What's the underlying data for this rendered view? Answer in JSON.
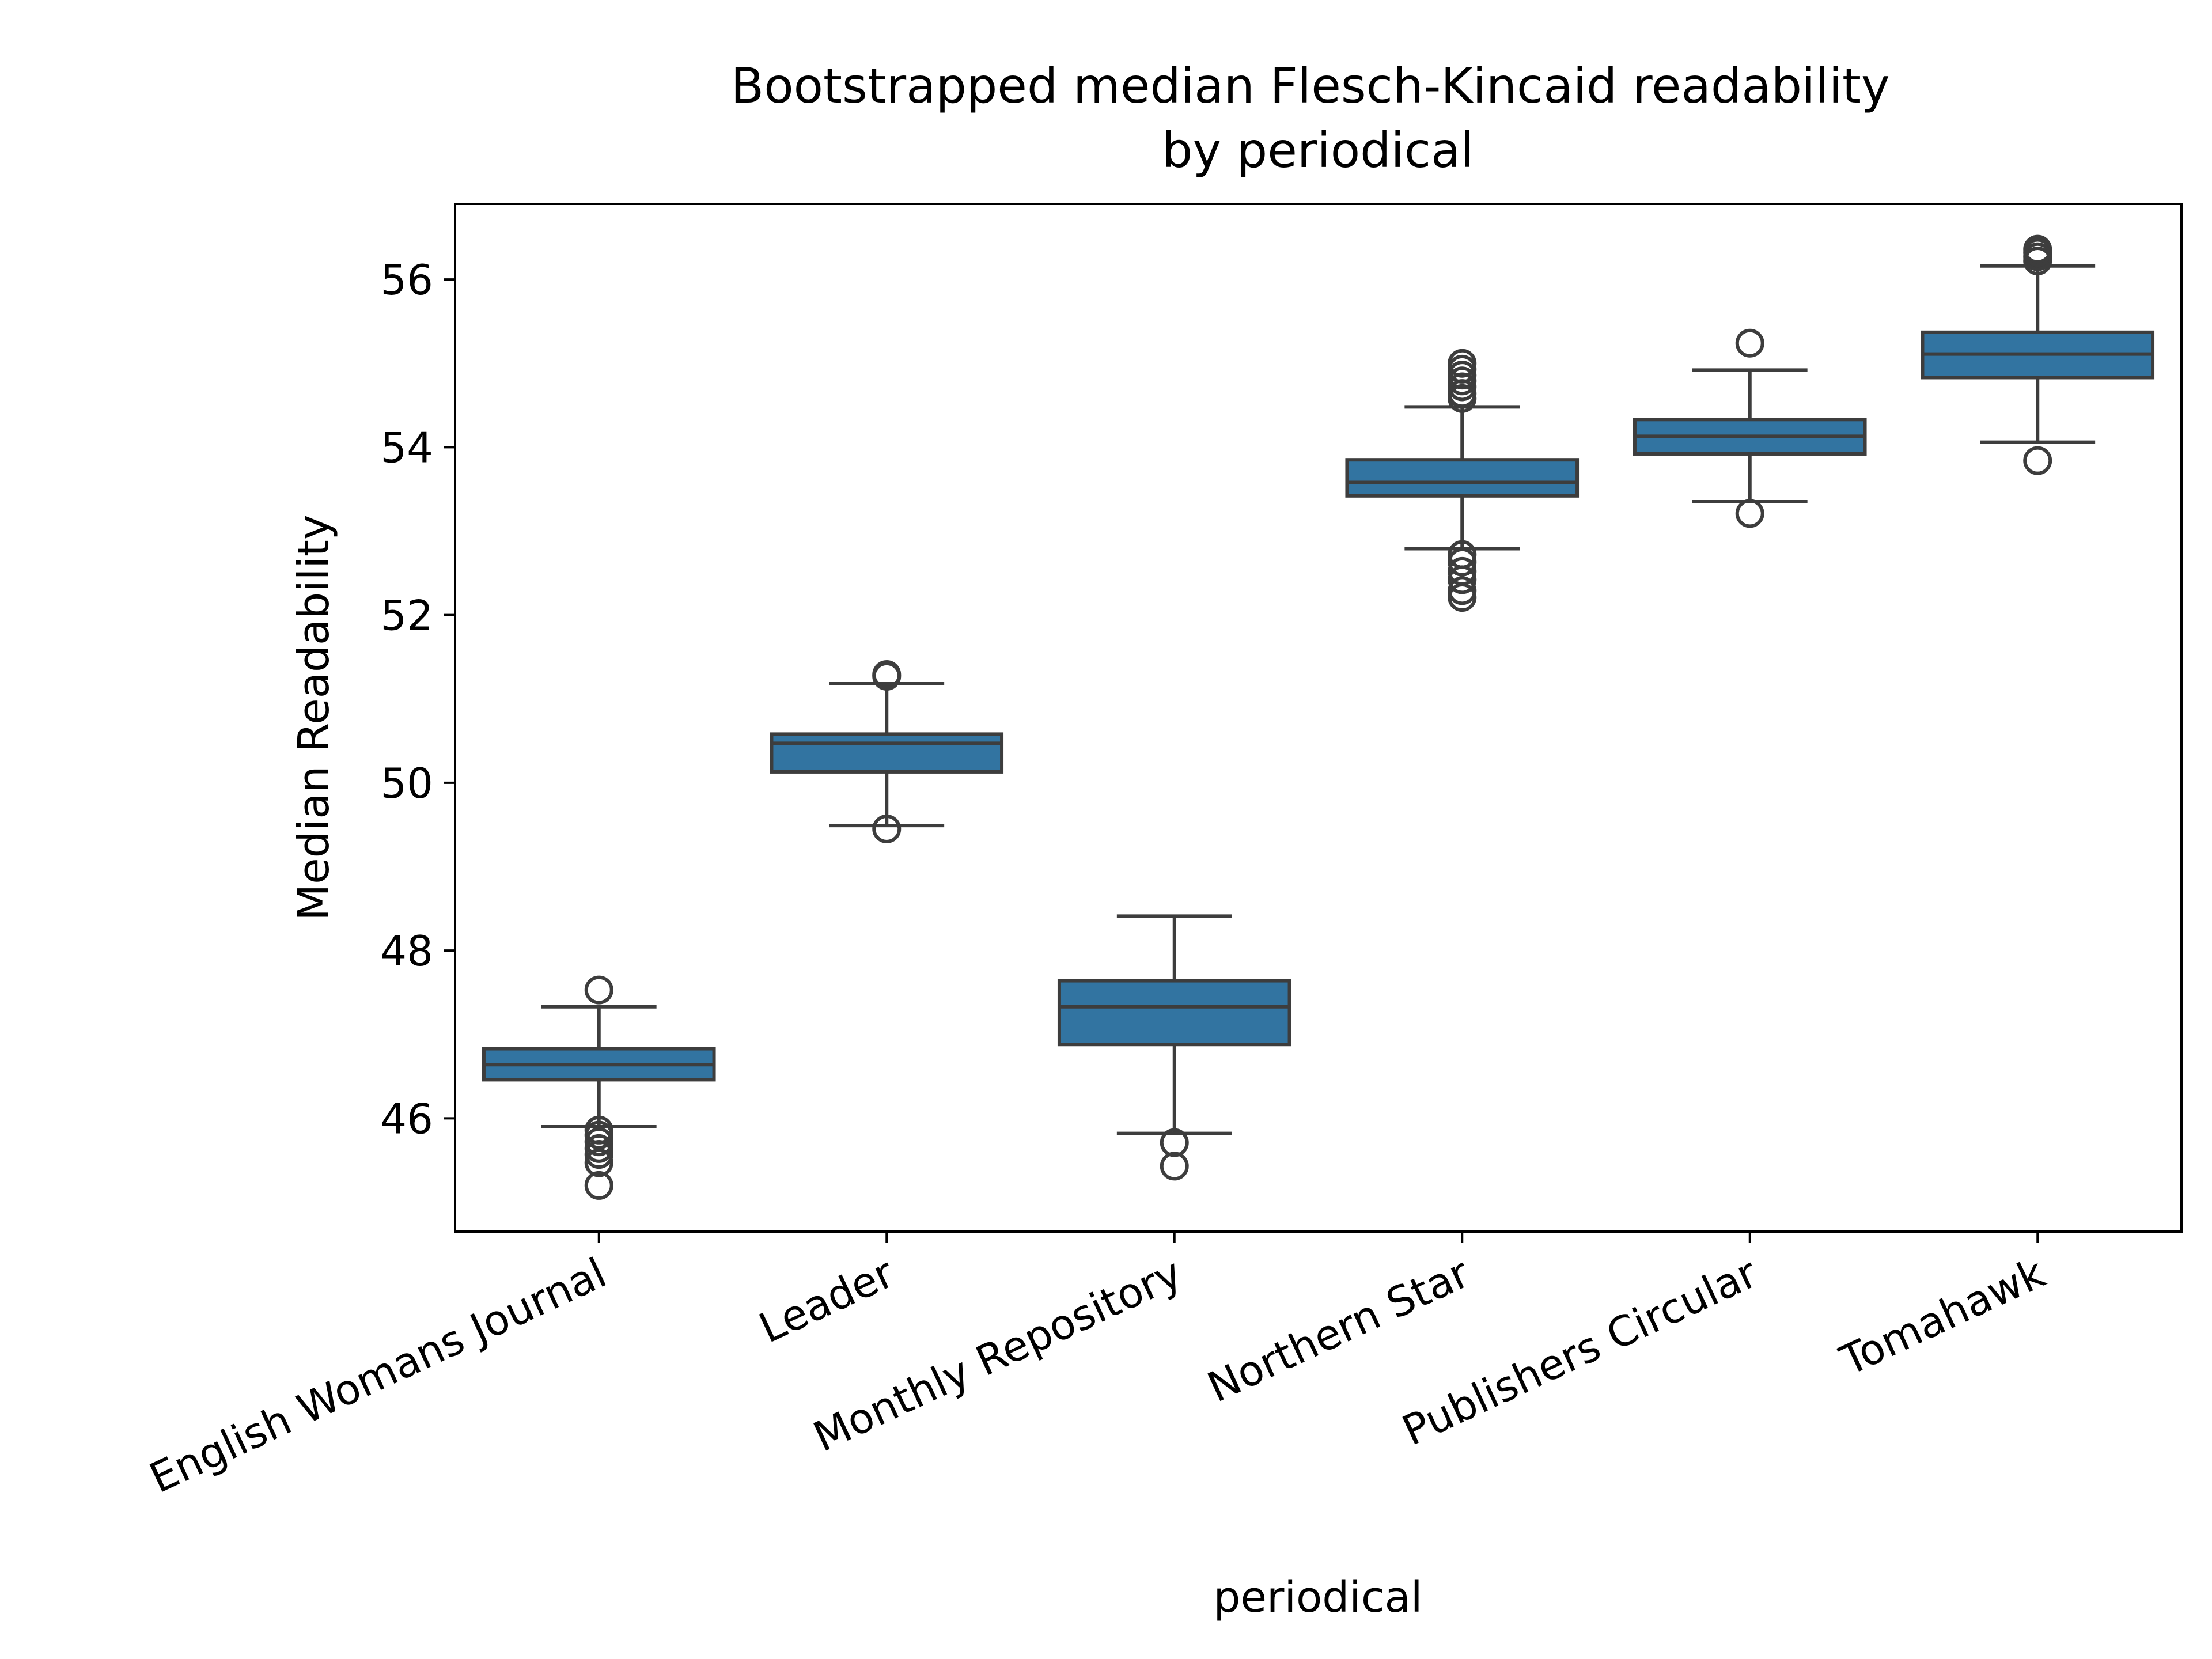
{
  "chart_data": {
    "type": "box",
    "title": "Bootstrapped median Flesch-Kincaid readability\nby periodical",
    "title_lines": [
      "Bootstrapped median Flesch-Kincaid readability",
      "by periodical"
    ],
    "xlabel": "periodical",
    "ylabel": "Median Readability",
    "ylim": [
      44.65,
      56.9
    ],
    "yticks": [
      46,
      48,
      50,
      52,
      54,
      56
    ],
    "categories": [
      "English Womans Journal",
      "Leader",
      "Monthly Repository",
      "Northern Star",
      "Publishers Circular",
      "Tomahawk"
    ],
    "boxes": [
      {
        "name": "English Womans Journal",
        "whislo": 45.9,
        "q1": 46.46,
        "med": 46.64,
        "q3": 46.83,
        "whishi": 47.33,
        "fliers": [
          47.53,
          45.86,
          45.8,
          45.72,
          45.64,
          45.57,
          45.47,
          45.2
        ]
      },
      {
        "name": "Leader",
        "whislo": 49.49,
        "q1": 50.13,
        "med": 50.47,
        "q3": 50.58,
        "whishi": 51.18,
        "fliers": [
          51.29,
          51.27,
          49.45
        ]
      },
      {
        "name": "Monthly Repository",
        "whislo": 45.82,
        "q1": 46.88,
        "med": 47.33,
        "q3": 47.64,
        "whishi": 48.41,
        "fliers": [
          45.71,
          45.43
        ]
      },
      {
        "name": "Northern Star",
        "whislo": 52.79,
        "q1": 53.42,
        "med": 53.58,
        "q3": 53.85,
        "whishi": 54.48,
        "fliers": [
          55.0,
          54.93,
          54.86,
          54.79,
          54.72,
          54.64,
          54.58,
          52.72,
          52.63,
          52.52,
          52.42,
          52.29,
          52.21
        ]
      },
      {
        "name": "Publishers Circular",
        "whislo": 53.35,
        "q1": 53.92,
        "med": 54.13,
        "q3": 54.33,
        "whishi": 54.92,
        "fliers": [
          55.24,
          53.21
        ]
      },
      {
        "name": "Tomahawk",
        "whislo": 54.06,
        "q1": 54.83,
        "med": 55.11,
        "q3": 55.37,
        "whishi": 56.16,
        "fliers": [
          56.36,
          56.32,
          56.27,
          56.22,
          53.84
        ]
      }
    ],
    "box_color": "#3274a1",
    "line_color": "#3d3d3d",
    "grid": false,
    "legend": "none"
  }
}
